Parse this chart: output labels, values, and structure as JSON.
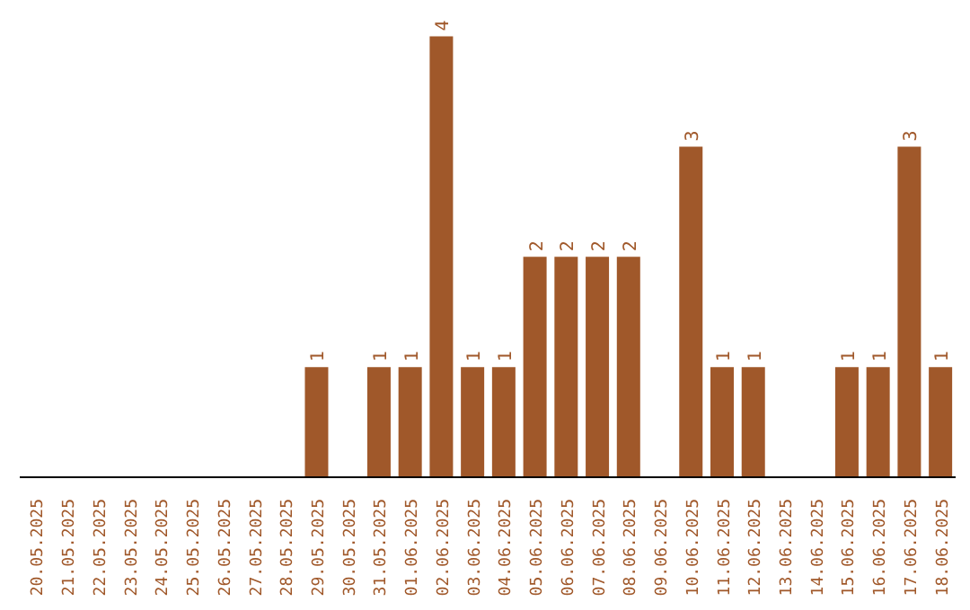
{
  "chart_data": {
    "type": "bar",
    "categories": [
      "20.05.2025",
      "21.05.2025",
      "22.05.2025",
      "23.05.2025",
      "24.05.2025",
      "25.05.2025",
      "26.05.2025",
      "27.05.2025",
      "28.05.2025",
      "29.05.2025",
      "30.05.2025",
      "31.05.2025",
      "01.06.2025",
      "02.06.2025",
      "03.06.2025",
      "04.06.2025",
      "05.06.2025",
      "06.06.2025",
      "07.06.2025",
      "08.06.2025",
      "09.06.2025",
      "10.06.2025",
      "11.06.2025",
      "12.06.2025",
      "13.06.2025",
      "14.06.2025",
      "15.06.2025",
      "16.06.2025",
      "17.06.2025",
      "18.06.2025"
    ],
    "values": [
      0,
      0,
      0,
      0,
      0,
      0,
      0,
      0,
      0,
      1,
      0,
      1,
      1,
      4,
      1,
      1,
      2,
      2,
      2,
      2,
      0,
      3,
      1,
      1,
      0,
      0,
      1,
      1,
      3,
      1
    ],
    "value_labels": [
      null,
      null,
      null,
      null,
      null,
      null,
      null,
      null,
      null,
      "1",
      null,
      "1",
      "1",
      "4",
      "1",
      "1",
      "2",
      "2",
      "2",
      "2",
      null,
      "3",
      "1",
      "1",
      null,
      null,
      "1",
      "1",
      "3",
      "1"
    ],
    "color": "#a0582a",
    "grid": false
  }
}
